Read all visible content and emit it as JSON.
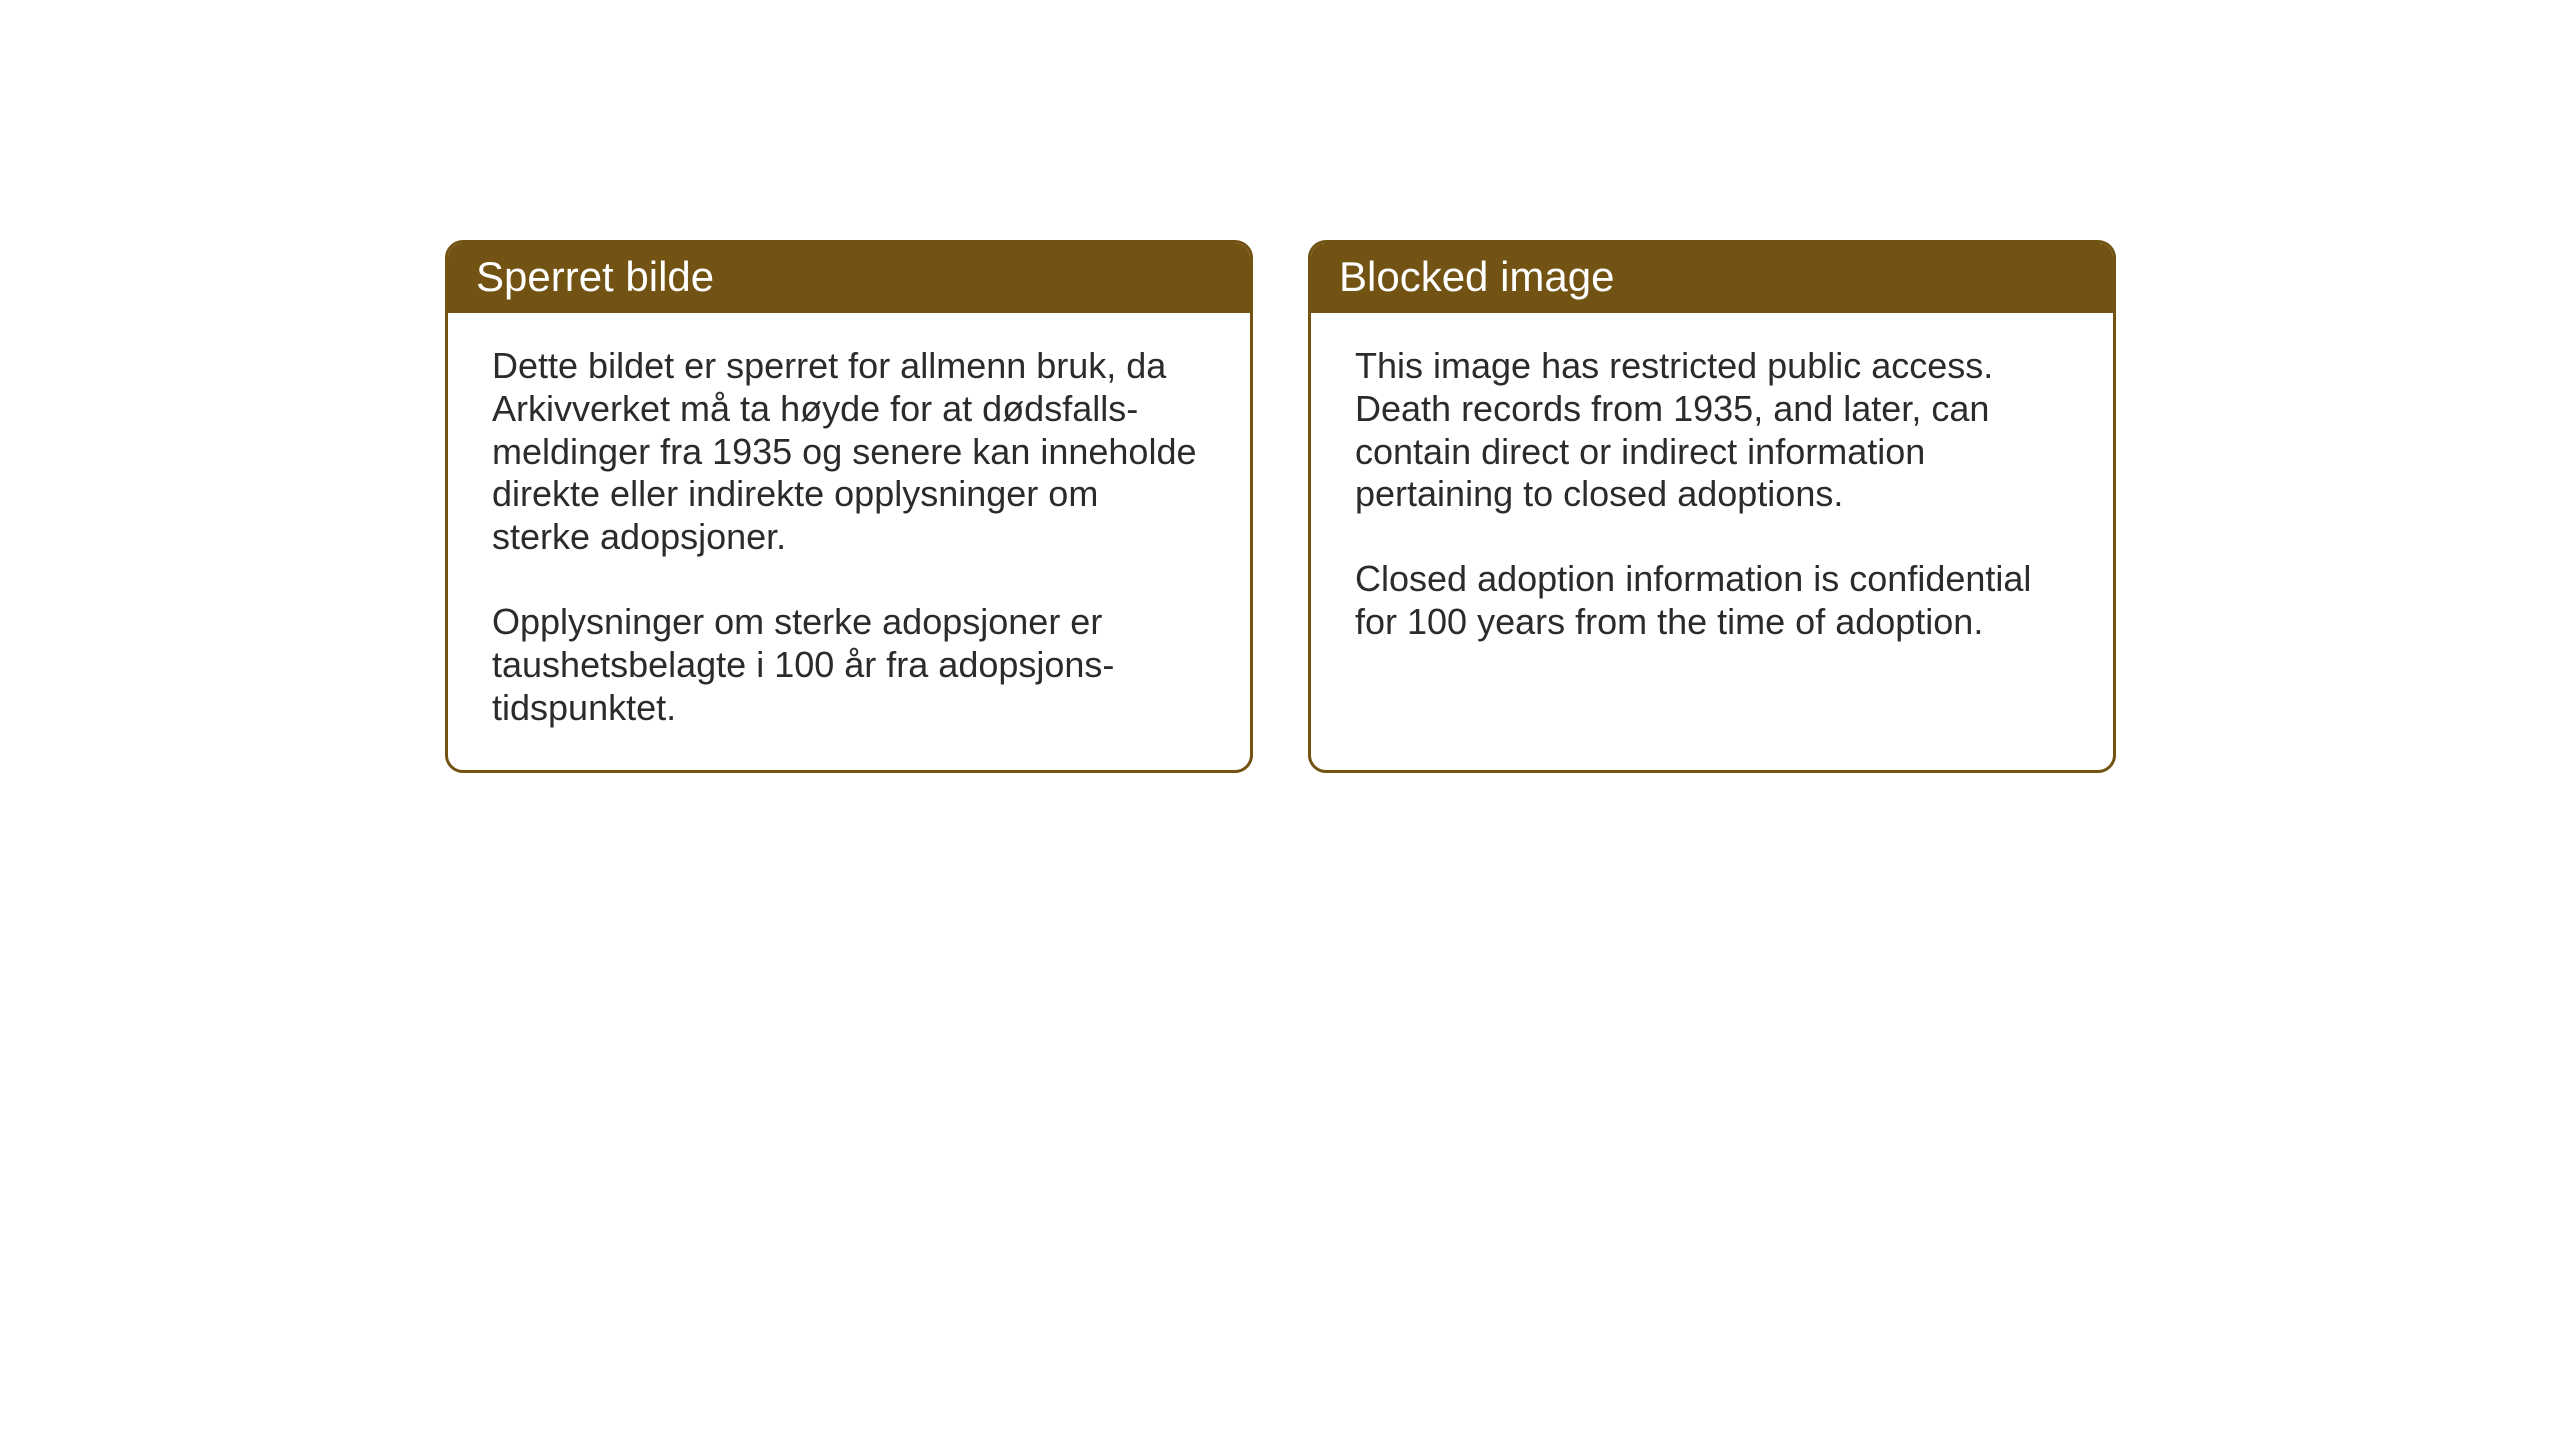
{
  "cards": {
    "norwegian": {
      "title": "Sperret bilde",
      "paragraph1": "Dette bildet er sperret for allmenn bruk, da Arkivverket må ta høyde for at dødsfalls-meldinger fra 1935 og senere kan inneholde direkte eller indirekte opplysninger om sterke adopsjoner.",
      "paragraph2": "Opplysninger om sterke adopsjoner er taushetsbelagte i 100 år fra adopsjons-tidspunktet."
    },
    "english": {
      "title": "Blocked image",
      "paragraph1": "This image has restricted public access. Death records from 1935, and later, can contain direct or indirect information pertaining to closed adoptions.",
      "paragraph2": "Closed adoption information is confidential for 100 years from the time of adoption."
    }
  },
  "styling": {
    "header_bg_color": "#735313",
    "header_text_color": "#ffffff",
    "border_color": "#735313",
    "body_text_color": "#2b2b2b",
    "page_bg_color": "#ffffff",
    "border_radius": 18,
    "border_width": 3,
    "title_fontsize": 42,
    "body_fontsize": 36
  }
}
